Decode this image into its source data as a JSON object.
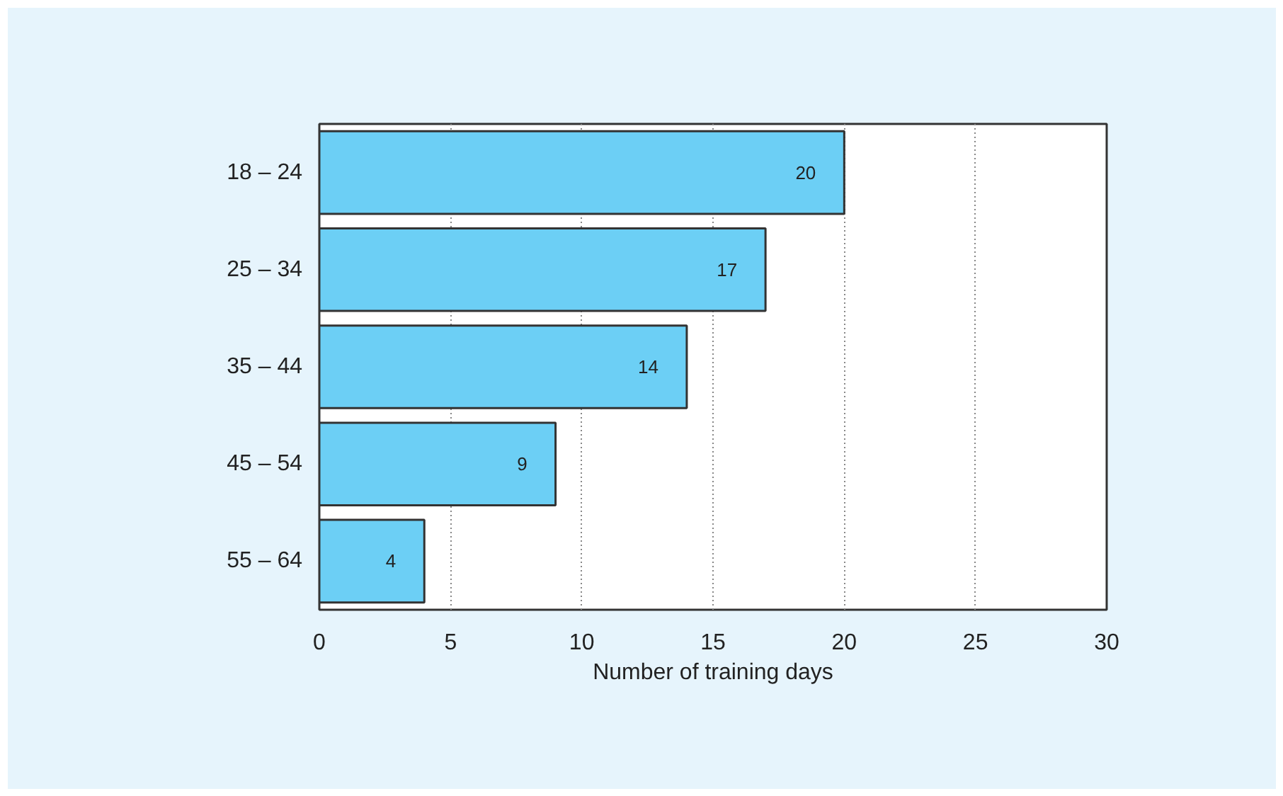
{
  "chart_data": {
    "type": "bar",
    "orientation": "horizontal",
    "categories": [
      "18 – 24",
      "25 – 34",
      "35 – 44",
      "45 – 54",
      "55 – 64"
    ],
    "values": [
      20,
      17,
      14,
      9,
      4
    ],
    "color": "#6ccff5",
    "xlabel": "Number of training days",
    "xlim": [
      0,
      30
    ],
    "xticks": [
      0,
      5,
      10,
      15,
      20,
      25,
      30
    ],
    "grid": "x",
    "data_labels": true
  }
}
